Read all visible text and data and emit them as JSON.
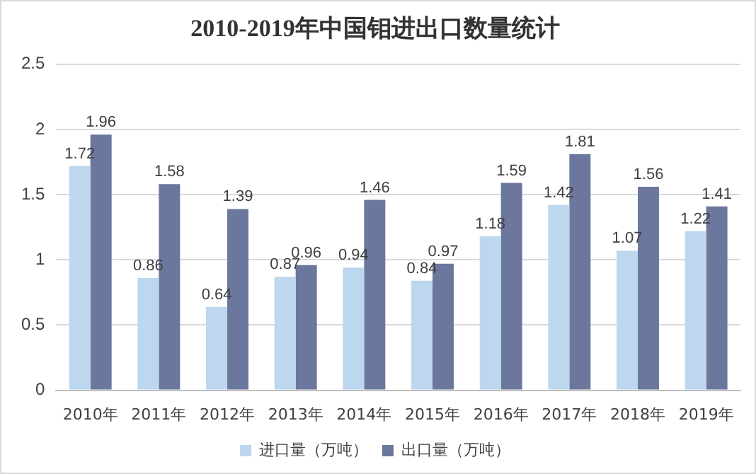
{
  "chart_data": {
    "type": "bar",
    "title": "2010-2019年中国钼进出口数量统计",
    "categories": [
      "2010年",
      "2011年",
      "2012年",
      "2013年",
      "2014年",
      "2015年",
      "2016年",
      "2017年",
      "2018年",
      "2019年"
    ],
    "series": [
      {
        "name": "进口量（万吨）",
        "color": "#bdd7ee",
        "values": [
          1.72,
          0.86,
          0.64,
          0.87,
          0.94,
          0.84,
          1.18,
          1.42,
          1.07,
          1.22
        ]
      },
      {
        "name": "出口量（万吨）",
        "color": "#6b779c",
        "values": [
          1.96,
          1.58,
          1.39,
          0.96,
          1.46,
          0.97,
          1.59,
          1.81,
          1.56,
          1.41
        ]
      }
    ],
    "ylim": [
      0,
      2.5
    ],
    "yticks": [
      0,
      0.5,
      1,
      1.5,
      2,
      2.5
    ],
    "grid": "y",
    "legend": "bottom",
    "data_labels": true
  }
}
